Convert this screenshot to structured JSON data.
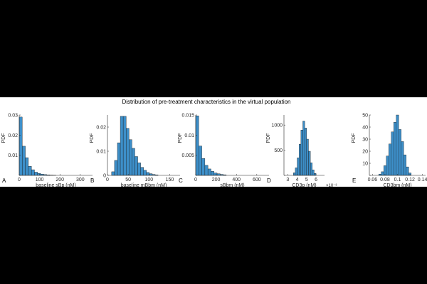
{
  "figure_title": "Distribution of pre-treatment characteristics in the virtual population",
  "colors": {
    "bar_fill": "#3d8fc9",
    "bar_stroke": "#1a1a1a",
    "axis": "#262626",
    "page_bg": "#000000",
    "figure_bg": "#ffffff"
  },
  "chart_data": [
    {
      "type": "bar",
      "letter": "A",
      "ylabel": "PDF",
      "xlabel": "baseline sBp (nM)",
      "xlim": [
        0,
        360
      ],
      "ylim": [
        0,
        0.03
      ],
      "xticks": [
        0,
        100,
        200,
        300
      ],
      "xtick_labels": [
        "0",
        "100",
        "200",
        "300"
      ],
      "yticks": [
        0,
        0.01,
        0.02,
        0.03
      ],
      "ytick_labels": [
        "",
        "0.01",
        "0.02",
        "0.03"
      ],
      "bin_edges": [
        0,
        15,
        30,
        45,
        60,
        75,
        90,
        105,
        120,
        135,
        150,
        165,
        180
      ],
      "values": [
        0.029,
        0.0145,
        0.0088,
        0.0045,
        0.0028,
        0.0016,
        0.001,
        0.0006,
        0.0004,
        0.00025,
        0.00015,
        0.0001
      ]
    },
    {
      "type": "bar",
      "letter": "B",
      "ylabel": "PDF",
      "xlabel": "baseline mBbm (nM)",
      "xlim": [
        0,
        175
      ],
      "ylim": [
        0,
        0.025
      ],
      "xticks": [
        0,
        50,
        100,
        150
      ],
      "xtick_labels": [
        "0",
        "50",
        "100",
        "150"
      ],
      "yticks": [
        0,
        0.01,
        0.02
      ],
      "ytick_labels": [
        "0",
        "0.01",
        "0.02"
      ],
      "bin_edges": [
        10,
        17,
        24,
        31,
        38,
        45,
        52,
        59,
        66,
        73,
        80,
        87,
        94,
        101,
        108,
        115,
        122
      ],
      "values": [
        0.0015,
        0.0062,
        0.0135,
        0.0245,
        0.0245,
        0.0195,
        0.0148,
        0.0112,
        0.0078,
        0.0052,
        0.0033,
        0.0021,
        0.0012,
        0.0007,
        0.0004,
        0.0002
      ]
    },
    {
      "type": "bar",
      "letter": "C",
      "ylabel": "PDF",
      "xlabel": "sBbm (nM)",
      "xlim": [
        0,
        720
      ],
      "ylim": [
        0,
        0.015
      ],
      "xticks": [
        0,
        200,
        400,
        600
      ],
      "xtick_labels": [
        "0",
        "200",
        "400",
        "600"
      ],
      "yticks": [
        0,
        0.005,
        0.01,
        0.015
      ],
      "ytick_labels": [
        "",
        "0.005",
        "0.01",
        "0.015"
      ],
      "bin_edges": [
        0,
        30,
        60,
        90,
        120,
        150,
        180,
        210,
        240,
        270,
        300
      ],
      "values": [
        0.0148,
        0.0073,
        0.0042,
        0.0025,
        0.0016,
        0.001,
        0.0006,
        0.0004,
        0.00025,
        0.00015
      ]
    },
    {
      "type": "bar",
      "letter": "D",
      "ylabel": "PDF",
      "xlabel": "CD3p (nM)",
      "xlim": [
        2.6,
        6.9
      ],
      "ylim": [
        0,
        1200
      ],
      "xticks": [
        3,
        4,
        5,
        6
      ],
      "xtick_labels": [
        "3",
        "4",
        "5",
        "6"
      ],
      "yticks": [
        0,
        500,
        1000
      ],
      "ytick_labels": [
        "",
        "500",
        "1000"
      ],
      "x_multiplier": "×10⁻³",
      "bin_edges": [
        3.6,
        3.8,
        4.0,
        4.2,
        4.4,
        4.6,
        4.8,
        5.0,
        5.2,
        5.4,
        5.6,
        5.8,
        6.0
      ],
      "values": [
        50,
        150,
        350,
        620,
        900,
        1080,
        940,
        720,
        480,
        250,
        110,
        40
      ]
    },
    {
      "type": "bar",
      "letter": "E",
      "ylabel": "PDF",
      "xlabel": "CD3bm (nM)",
      "xlim": [
        0.055,
        0.145
      ],
      "ylim": [
        0,
        50
      ],
      "xticks": [
        0.06,
        0.08,
        0.1,
        0.12,
        0.14
      ],
      "xtick_labels": [
        "0.06",
        "0.08",
        "0.1",
        "0.12",
        "0.14"
      ],
      "yticks": [
        0,
        10,
        20,
        30,
        40,
        50
      ],
      "ytick_labels": [
        "",
        "10",
        "20",
        "30",
        "40",
        "50"
      ],
      "bin_edges": [
        0.07,
        0.074,
        0.078,
        0.082,
        0.086,
        0.09,
        0.094,
        0.098,
        0.102,
        0.106,
        0.11,
        0.114,
        0.118,
        0.122
      ],
      "values": [
        1,
        3,
        8,
        16,
        26,
        36,
        44,
        50,
        38,
        28,
        17,
        7,
        2
      ]
    }
  ]
}
